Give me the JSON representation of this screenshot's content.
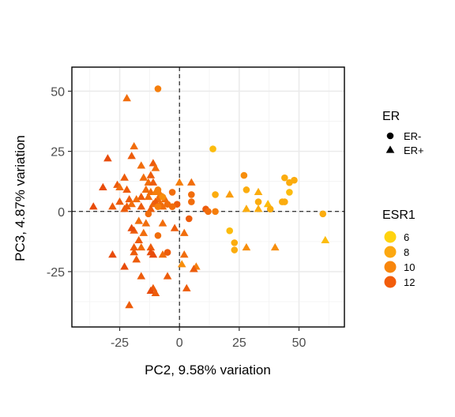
{
  "chart_data": {
    "type": "scatter",
    "xlabel": "PC2, 9.58% variation",
    "ylabel": "PC3, 4.87% variation",
    "xlim": [
      -45,
      69
    ],
    "ylim": [
      -48,
      60
    ],
    "xticks": [
      -25,
      0,
      25,
      50
    ],
    "yticks": [
      -25,
      0,
      25,
      50
    ],
    "xtick_labels": [
      "-25",
      "0",
      "25",
      "50"
    ],
    "ytick_labels": [
      "-25",
      "0",
      "25",
      "50"
    ],
    "grid": true,
    "reference_lines": {
      "x": 0,
      "y": 0,
      "style": "dashed"
    },
    "legends": {
      "shape": {
        "title": "ER",
        "entries": [
          {
            "label": "ER-",
            "shape": "circle"
          },
          {
            "label": "ER+",
            "shape": "triangle"
          }
        ]
      },
      "color": {
        "title": "ESR1",
        "entries": [
          {
            "label": "6",
            "color": "#ffd30f"
          },
          {
            "label": "8",
            "color": "#fca810"
          },
          {
            "label": "10",
            "color": "#f8860c"
          },
          {
            "label": "12",
            "color": "#f25c0a"
          }
        ]
      }
    },
    "color_scale": {
      "min": 4.5,
      "max": 15,
      "low": "#ffd30f",
      "mid": "#f6820c",
      "high": "#e02a0a"
    },
    "points": [
      {
        "x": -9,
        "y": 51,
        "er": "ER-",
        "esr1": 10
      },
      {
        "x": -22,
        "y": 47,
        "er": "ER+",
        "esr1": 11
      },
      {
        "x": -19,
        "y": 27,
        "er": "ER+",
        "esr1": 11
      },
      {
        "x": -30,
        "y": 22,
        "er": "ER+",
        "esr1": 13
      },
      {
        "x": -20,
        "y": 23,
        "er": "ER+",
        "esr1": 12
      },
      {
        "x": -16,
        "y": 19,
        "er": "ER+",
        "esr1": 11
      },
      {
        "x": -11,
        "y": 20,
        "er": "ER+",
        "esr1": 12
      },
      {
        "x": -10,
        "y": 18,
        "er": "ER+",
        "esr1": 11
      },
      {
        "x": -12,
        "y": 15,
        "er": "ER+",
        "esr1": 12
      },
      {
        "x": -15,
        "y": 14,
        "er": "ER+",
        "esr1": 11
      },
      {
        "x": -13,
        "y": 12,
        "er": "ER+",
        "esr1": 11
      },
      {
        "x": -11,
        "y": 12,
        "er": "ER+",
        "esr1": 12
      },
      {
        "x": -23,
        "y": 14,
        "er": "ER+",
        "esr1": 12
      },
      {
        "x": -26,
        "y": 11,
        "er": "ER+",
        "esr1": 12
      },
      {
        "x": -25,
        "y": 10,
        "er": "ER+",
        "esr1": 11
      },
      {
        "x": -22,
        "y": 9,
        "er": "ER+",
        "esr1": 12
      },
      {
        "x": -32,
        "y": 10,
        "er": "ER+",
        "esr1": 13
      },
      {
        "x": -14,
        "y": 9,
        "er": "ER+",
        "esr1": 11
      },
      {
        "x": -12,
        "y": 8,
        "er": "ER+",
        "esr1": 11
      },
      {
        "x": -10,
        "y": 8,
        "er": "ER+",
        "esr1": 10
      },
      {
        "x": -8,
        "y": 7,
        "er": "ER+",
        "esr1": 10
      },
      {
        "x": -7,
        "y": 6,
        "er": "ER+",
        "esr1": 10
      },
      {
        "x": -9,
        "y": 5,
        "er": "ER+",
        "esr1": 11
      },
      {
        "x": -6,
        "y": 5,
        "er": "ER+",
        "esr1": 11
      },
      {
        "x": -13,
        "y": 6,
        "er": "ER+",
        "esr1": 11
      },
      {
        "x": -16,
        "y": 6,
        "er": "ER+",
        "esr1": 12
      },
      {
        "x": -18,
        "y": 5,
        "er": "ER+",
        "esr1": 11
      },
      {
        "x": -21,
        "y": 5,
        "er": "ER+",
        "esr1": 12
      },
      {
        "x": -25,
        "y": 4,
        "er": "ER+",
        "esr1": 12
      },
      {
        "x": -20,
        "y": 3,
        "er": "ER+",
        "esr1": 11
      },
      {
        "x": -16,
        "y": 2,
        "er": "ER+",
        "esr1": 12
      },
      {
        "x": -11,
        "y": 3,
        "er": "ER+",
        "esr1": 11
      },
      {
        "x": -10,
        "y": 4,
        "er": "ER+",
        "esr1": 12
      },
      {
        "x": -8,
        "y": 3,
        "er": "ER+",
        "esr1": 11
      },
      {
        "x": -7,
        "y": 2,
        "er": "ER+",
        "esr1": 11
      },
      {
        "x": -12,
        "y": 1,
        "er": "ER+",
        "esr1": 12
      },
      {
        "x": -22,
        "y": 2,
        "er": "ER+",
        "esr1": 12
      },
      {
        "x": -23,
        "y": 1,
        "er": "ER+",
        "esr1": 12
      },
      {
        "x": -36,
        "y": 2,
        "er": "ER+",
        "esr1": 13
      },
      {
        "x": -28,
        "y": 2,
        "er": "ER+",
        "esr1": 12
      },
      {
        "x": -9,
        "y": 9,
        "er": "ER-",
        "esr1": 10
      },
      {
        "x": -7,
        "y": 6,
        "er": "ER-",
        "esr1": 9
      },
      {
        "x": -9,
        "y": 2,
        "er": "ER-",
        "esr1": 10
      },
      {
        "x": -5,
        "y": 3,
        "er": "ER-",
        "esr1": 11
      },
      {
        "x": -3,
        "y": 8,
        "er": "ER-",
        "esr1": 11
      },
      {
        "x": -13,
        "y": -1,
        "er": "ER-",
        "esr1": 11
      },
      {
        "x": 0,
        "y": 12,
        "er": "ER+",
        "esr1": 10
      },
      {
        "x": 5,
        "y": 12,
        "er": "ER+",
        "esr1": 11
      },
      {
        "x": 5,
        "y": 7,
        "er": "ER-",
        "esr1": 11
      },
      {
        "x": 5,
        "y": 4,
        "er": "ER-",
        "esr1": 11
      },
      {
        "x": -1,
        "y": 3,
        "er": "ER-",
        "esr1": 12
      },
      {
        "x": -3,
        "y": 2,
        "er": "ER-",
        "esr1": 11
      },
      {
        "x": 11,
        "y": 1,
        "er": "ER-",
        "esr1": 12
      },
      {
        "x": 12,
        "y": 0,
        "er": "ER-",
        "esr1": 11
      },
      {
        "x": 15,
        "y": 0,
        "er": "ER-",
        "esr1": 10
      },
      {
        "x": 14,
        "y": 26,
        "er": "ER-",
        "esr1": 6
      },
      {
        "x": 15,
        "y": 7,
        "er": "ER-",
        "esr1": 7
      },
      {
        "x": 21,
        "y": 7,
        "er": "ER+",
        "esr1": 8
      },
      {
        "x": 27,
        "y": 15,
        "er": "ER-",
        "esr1": 9
      },
      {
        "x": 28,
        "y": 9,
        "er": "ER-",
        "esr1": 7
      },
      {
        "x": 33,
        "y": 8,
        "er": "ER+",
        "esr1": 7
      },
      {
        "x": 33,
        "y": 4,
        "er": "ER-",
        "esr1": 7
      },
      {
        "x": 28,
        "y": 1,
        "er": "ER+",
        "esr1": 7
      },
      {
        "x": 33,
        "y": 1,
        "er": "ER+",
        "esr1": 7
      },
      {
        "x": 37,
        "y": 3,
        "er": "ER+",
        "esr1": 6
      },
      {
        "x": 38,
        "y": 1,
        "er": "ER-",
        "esr1": 7
      },
      {
        "x": 43,
        "y": 4,
        "er": "ER-",
        "esr1": 7
      },
      {
        "x": 44,
        "y": 4,
        "er": "ER-",
        "esr1": 7
      },
      {
        "x": 44,
        "y": 14,
        "er": "ER-",
        "esr1": 7
      },
      {
        "x": 46,
        "y": 12,
        "er": "ER-",
        "esr1": 7
      },
      {
        "x": 48,
        "y": 13,
        "er": "ER-",
        "esr1": 7
      },
      {
        "x": 46,
        "y": 8,
        "er": "ER-",
        "esr1": 6
      },
      {
        "x": 60,
        "y": -1,
        "er": "ER-",
        "esr1": 7
      },
      {
        "x": 61,
        "y": -12,
        "er": "ER+",
        "esr1": 6
      },
      {
        "x": 21,
        "y": -8,
        "er": "ER-",
        "esr1": 6
      },
      {
        "x": 23,
        "y": -13,
        "er": "ER-",
        "esr1": 7
      },
      {
        "x": 23,
        "y": -16,
        "er": "ER-",
        "esr1": 7
      },
      {
        "x": 28,
        "y": -15,
        "er": "ER+",
        "esr1": 9
      },
      {
        "x": 40,
        "y": -15,
        "er": "ER+",
        "esr1": 9
      },
      {
        "x": -17,
        "y": -4,
        "er": "ER+",
        "esr1": 11
      },
      {
        "x": -14,
        "y": -5,
        "er": "ER+",
        "esr1": 11
      },
      {
        "x": -7,
        "y": -5,
        "er": "ER+",
        "esr1": 11
      },
      {
        "x": 4,
        "y": -3,
        "er": "ER-",
        "esr1": 12
      },
      {
        "x": -2,
        "y": -7,
        "er": "ER+",
        "esr1": 12
      },
      {
        "x": -15,
        "y": -9,
        "er": "ER+",
        "esr1": 11
      },
      {
        "x": -19,
        "y": -8,
        "er": "ER+",
        "esr1": 12
      },
      {
        "x": -20,
        "y": -7,
        "er": "ER+",
        "esr1": 13
      },
      {
        "x": -9,
        "y": -10,
        "er": "ER-",
        "esr1": 11
      },
      {
        "x": 2,
        "y": -9,
        "er": "ER+",
        "esr1": 11
      },
      {
        "x": -17,
        "y": -12,
        "er": "ER+",
        "esr1": 12
      },
      {
        "x": -16,
        "y": -15,
        "er": "ER+",
        "esr1": 11
      },
      {
        "x": -19,
        "y": -15,
        "er": "ER+",
        "esr1": 12
      },
      {
        "x": -12,
        "y": -15,
        "er": "ER+",
        "esr1": 12
      },
      {
        "x": -12,
        "y": -17,
        "er": "ER+",
        "esr1": 13
      },
      {
        "x": -11,
        "y": -18,
        "er": "ER+",
        "esr1": 13
      },
      {
        "x": -7,
        "y": -18,
        "er": "ER+",
        "esr1": 11
      },
      {
        "x": -19,
        "y": -17,
        "er": "ER+",
        "esr1": 12
      },
      {
        "x": -28,
        "y": -18,
        "er": "ER+",
        "esr1": 13
      },
      {
        "x": -5,
        "y": -17,
        "er": "ER-",
        "esr1": 12
      },
      {
        "x": 2,
        "y": -18,
        "er": "ER+",
        "esr1": 11
      },
      {
        "x": -18,
        "y": -20,
        "er": "ER+",
        "esr1": 12
      },
      {
        "x": 1,
        "y": -22,
        "er": "ER+",
        "esr1": 9
      },
      {
        "x": -23,
        "y": -23,
        "er": "ER+",
        "esr1": 13
      },
      {
        "x": 7,
        "y": -23,
        "er": "ER+",
        "esr1": 10
      },
      {
        "x": 6,
        "y": -24,
        "er": "ER+",
        "esr1": 12
      },
      {
        "x": -5,
        "y": -27,
        "er": "ER+",
        "esr1": 12
      },
      {
        "x": -16,
        "y": -27,
        "er": "ER+",
        "esr1": 12
      },
      {
        "x": 3,
        "y": -32,
        "er": "ER+",
        "esr1": 12
      },
      {
        "x": -11,
        "y": -32,
        "er": "ER+",
        "esr1": 12
      },
      {
        "x": -12,
        "y": -33,
        "er": "ER+",
        "esr1": 13
      },
      {
        "x": -10,
        "y": -34,
        "er": "ER+",
        "esr1": 12
      },
      {
        "x": -21,
        "y": -39,
        "er": "ER+",
        "esr1": 12
      }
    ]
  }
}
